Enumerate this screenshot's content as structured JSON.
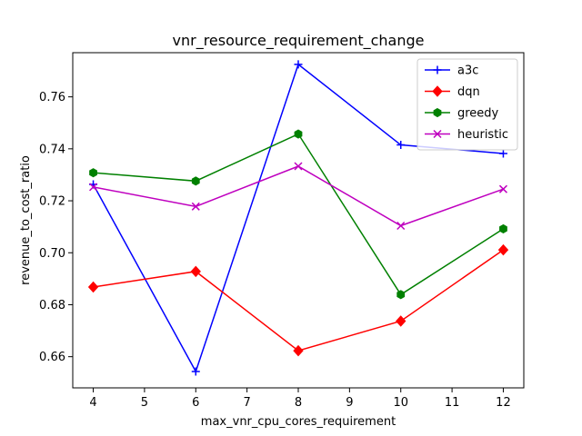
{
  "chart_data": {
    "type": "line",
    "title": "vnr_resource_requirement_change",
    "xlabel": "max_vnr_cpu_cores_requirement",
    "ylabel": "revenue_to_cost_ratio",
    "x": [
      4,
      6,
      8,
      10,
      12
    ],
    "xlim": [
      3.6,
      12.4
    ],
    "ylim": [
      0.648,
      0.777
    ],
    "xticks": [
      4,
      5,
      6,
      7,
      8,
      9,
      10,
      11,
      12
    ],
    "yticks": [
      0.66,
      0.68,
      0.7,
      0.72,
      0.74,
      0.76
    ],
    "grid": false,
    "legend_position": "top-right",
    "series": [
      {
        "name": "a3c",
        "color": "#0000ff",
        "marker": "plus",
        "values": [
          0.7263,
          0.6543,
          0.7725,
          0.7415,
          0.7382
        ]
      },
      {
        "name": "dqn",
        "color": "#ff0000",
        "marker": "diamond",
        "values": [
          0.6868,
          0.6928,
          0.6623,
          0.6737,
          0.7011
        ]
      },
      {
        "name": "greedy",
        "color": "#008000",
        "marker": "hexagon",
        "values": [
          0.7308,
          0.7276,
          0.7457,
          0.6839,
          0.7092
        ]
      },
      {
        "name": "heuristic",
        "color": "#bf00bf",
        "marker": "x",
        "values": [
          0.7253,
          0.7178,
          0.7333,
          0.7104,
          0.7245
        ]
      }
    ]
  }
}
